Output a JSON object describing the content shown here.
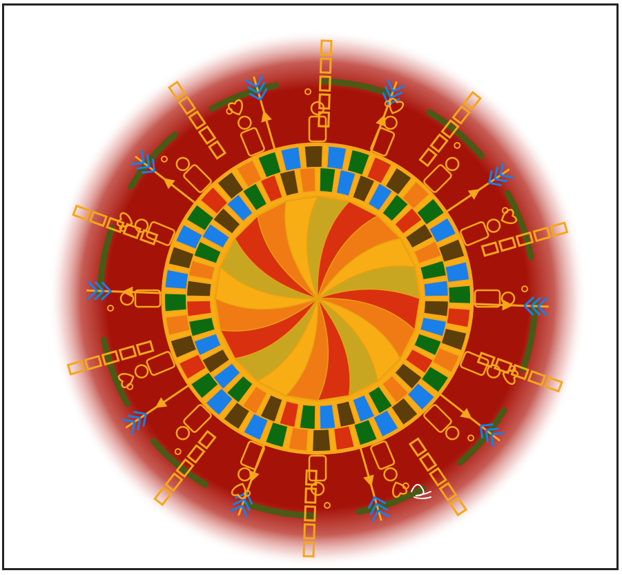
{
  "artwork": {
    "palette": {
      "background": "#ffffff",
      "frame": "#222222",
      "red_field": "#a51208",
      "red_dark": "#8f0f05",
      "outline_orange": "#f6a61a",
      "fill_yellow": "#f7ad13",
      "orange": "#f07a14",
      "red": "#d9310f",
      "green": "#0c6b10",
      "brown": "#5b3e0a",
      "blue": "#1a7fe6",
      "olive": "#4a5a14"
    },
    "elements": {
      "segments": 16,
      "rings": [
        "center-pinwheel",
        "yellow-band",
        "striped-band",
        "figure-band",
        "arrow-spokes"
      ],
      "icons": [
        "pinwheel-icon",
        "arrow-icon",
        "ladder-icon",
        "figure-icon",
        "heart-icon",
        "signature-icon"
      ]
    }
  }
}
